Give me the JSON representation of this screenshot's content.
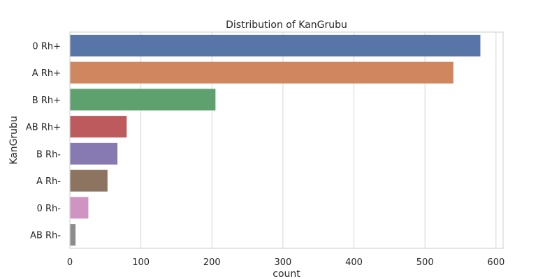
{
  "chart_data": {
    "type": "bar",
    "orientation": "horizontal",
    "title": "Distribution of KanGrubu",
    "xlabel": "count",
    "ylabel": "KanGrubu",
    "categories": [
      "0 Rh+",
      "A Rh+",
      "B Rh+",
      "AB Rh+",
      "B Rh-",
      "A Rh-",
      "0 Rh-",
      "AB Rh-"
    ],
    "values": [
      578,
      540,
      205,
      80,
      67,
      53,
      26,
      8
    ],
    "colors": [
      "#5875a8",
      "#d0875f",
      "#5ea06e",
      "#bc5a5e",
      "#8779b2",
      "#8d7460",
      "#d094c2",
      "#8c8c8c"
    ],
    "xlim": [
      0,
      610
    ],
    "x_ticks": [
      0,
      100,
      200,
      300,
      400,
      500,
      600
    ],
    "grid": "vertical",
    "legend": "none"
  }
}
